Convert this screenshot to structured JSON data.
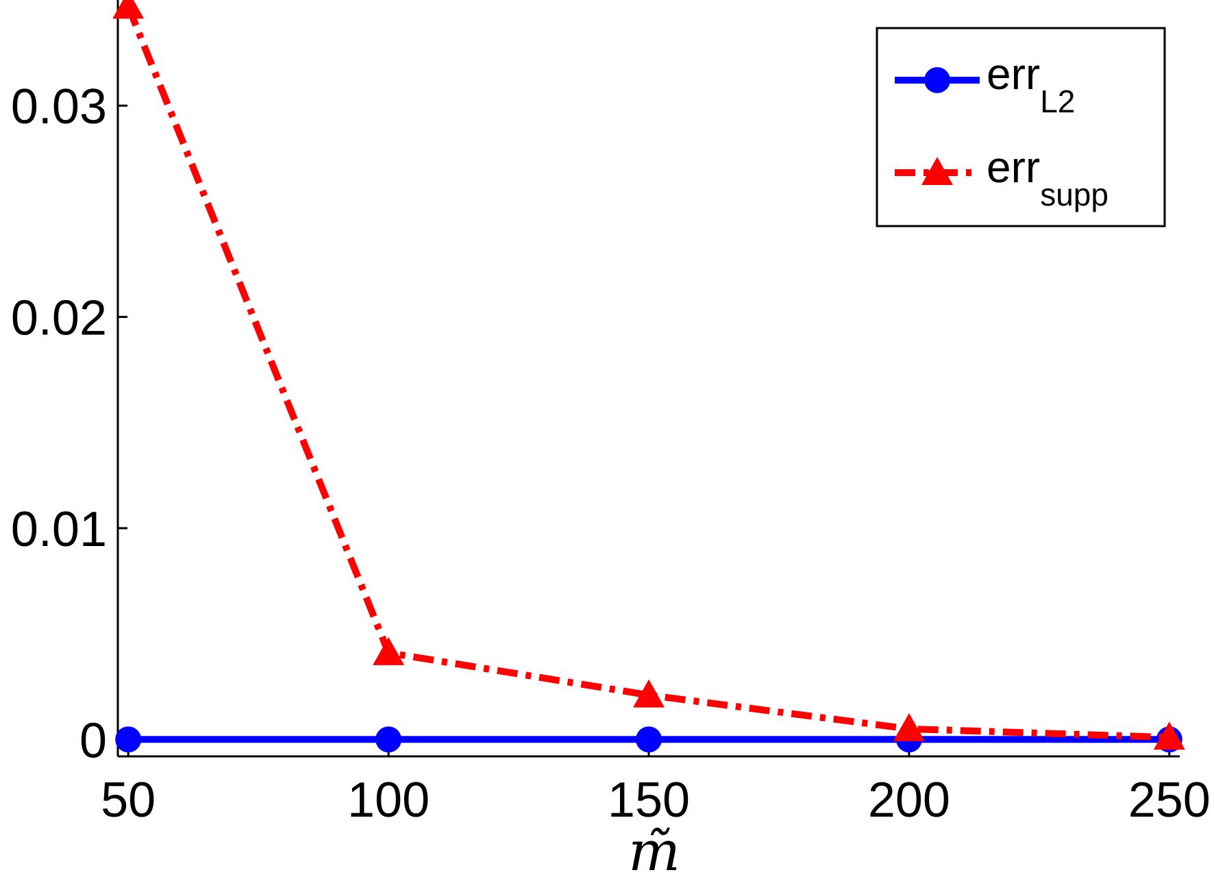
{
  "chart_data": {
    "type": "line",
    "title": "",
    "xlabel": "m̃",
    "ylabel": "",
    "x": [
      50,
      100,
      150,
      200,
      250
    ],
    "xlim": [
      48,
      252
    ],
    "ylim": [
      -0.0008,
      0.035
    ],
    "xticks": [
      50,
      100,
      150,
      200,
      250
    ],
    "xtick_labels": [
      "50",
      "100",
      "150",
      "200",
      "250"
    ],
    "yticks": [
      0,
      0.01,
      0.02,
      0.03
    ],
    "ytick_labels": [
      "0",
      "0.01",
      "0.02",
      "0.03"
    ],
    "grid": false,
    "legend_position": "top-right",
    "series": [
      {
        "name": "err",
        "name_subscript": "L2",
        "values": [
          0,
          0,
          0,
          0,
          0
        ],
        "color": "#0000ff",
        "line_style": "solid",
        "marker": "circle"
      },
      {
        "name": "err",
        "name_subscript": "supp",
        "values": [
          0.0347,
          0.0041,
          0.0021,
          0.0005,
          0.0001
        ],
        "color": "#ff0000",
        "line_style": "dash-dot",
        "marker": "triangle"
      }
    ]
  }
}
